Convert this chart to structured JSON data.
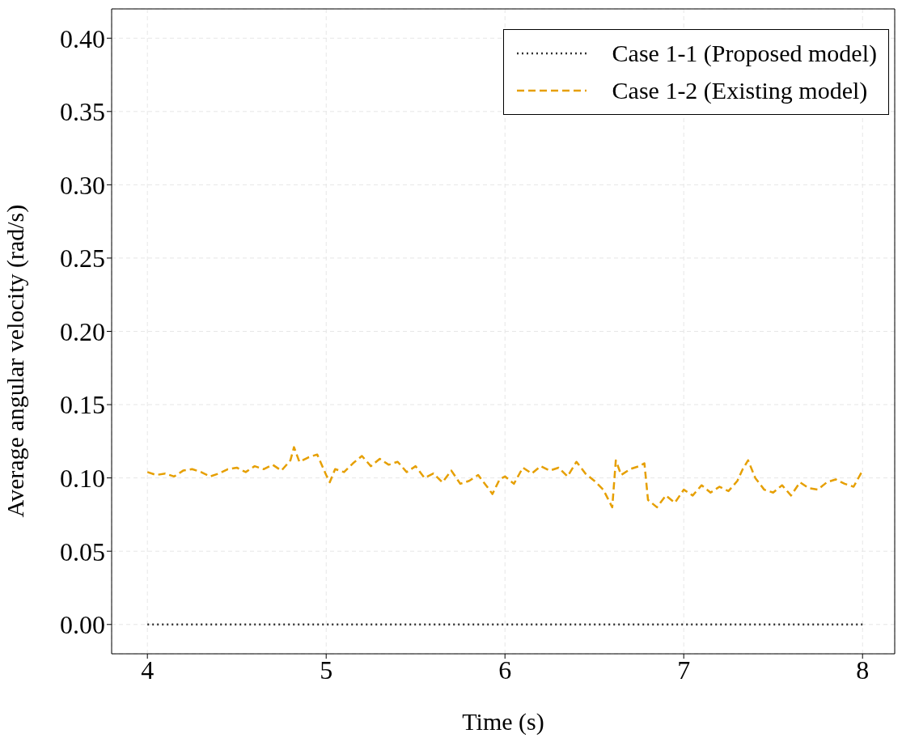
{
  "chart_data": {
    "type": "line",
    "xlabel": "Time (s)",
    "ylabel": "Average angular velocity (rad/s)",
    "xlim": [
      3.8,
      8.18
    ],
    "ylim": [
      -0.02,
      0.42
    ],
    "xticks": [
      4,
      5,
      6,
      7,
      8
    ],
    "yticks": [
      {
        "value": 0,
        "label": "0.00"
      },
      {
        "value": 0.05,
        "label": "0.05"
      },
      {
        "value": 0.1,
        "label": "0.10"
      },
      {
        "value": 0.15,
        "label": "0.15"
      },
      {
        "value": 0.2,
        "label": "0.20"
      },
      {
        "value": 0.25,
        "label": "0.25"
      },
      {
        "value": 0.3,
        "label": "0.30"
      },
      {
        "value": 0.35,
        "label": "0.35"
      },
      {
        "value": 0.4,
        "label": "0.40"
      }
    ],
    "grid": true,
    "legend": "top right",
    "series": [
      {
        "name": "Case 1-1 (Proposed model)",
        "color": "#333333",
        "line_style": "dotted",
        "x": [
          4,
          8
        ],
        "values": [
          0,
          0
        ]
      },
      {
        "name": "Case 1-2 (Existing model)",
        "color": "#e69f00",
        "line_style": "dashed",
        "x": [
          4,
          4.05,
          4.1,
          4.15,
          4.2,
          4.25,
          4.3,
          4.35,
          4.4,
          4.45,
          4.5,
          4.55,
          4.6,
          4.65,
          4.7,
          4.75,
          4.8,
          4.82,
          4.85,
          4.9,
          4.95,
          5.0,
          5.02,
          5.05,
          5.1,
          5.15,
          5.2,
          5.25,
          5.3,
          5.35,
          5.4,
          5.45,
          5.5,
          5.55,
          5.6,
          5.65,
          5.7,
          5.75,
          5.8,
          5.85,
          5.9,
          5.93,
          5.97,
          6.0,
          6.05,
          6.1,
          6.15,
          6.2,
          6.25,
          6.3,
          6.35,
          6.4,
          6.45,
          6.5,
          6.55,
          6.6,
          6.62,
          6.65,
          6.7,
          6.75,
          6.78,
          6.8,
          6.85,
          6.9,
          6.95,
          7.0,
          7.05,
          7.1,
          7.15,
          7.2,
          7.25,
          7.3,
          7.33,
          7.36,
          7.4,
          7.45,
          7.5,
          7.55,
          7.6,
          7.65,
          7.7,
          7.75,
          7.8,
          7.85,
          7.9,
          7.95,
          8.0
        ],
        "values": [
          0.104,
          0.102,
          0.103,
          0.101,
          0.105,
          0.106,
          0.104,
          0.101,
          0.103,
          0.106,
          0.107,
          0.104,
          0.108,
          0.106,
          0.109,
          0.105,
          0.112,
          0.121,
          0.111,
          0.114,
          0.116,
          0.102,
          0.097,
          0.106,
          0.104,
          0.11,
          0.115,
          0.108,
          0.113,
          0.109,
          0.111,
          0.104,
          0.108,
          0.1,
          0.103,
          0.097,
          0.105,
          0.096,
          0.098,
          0.102,
          0.094,
          0.089,
          0.099,
          0.101,
          0.096,
          0.107,
          0.103,
          0.108,
          0.105,
          0.107,
          0.101,
          0.111,
          0.103,
          0.098,
          0.092,
          0.08,
          0.112,
          0.102,
          0.106,
          0.108,
          0.11,
          0.085,
          0.08,
          0.088,
          0.083,
          0.092,
          0.088,
          0.095,
          0.09,
          0.094,
          0.091,
          0.098,
          0.106,
          0.112,
          0.1,
          0.092,
          0.09,
          0.095,
          0.088,
          0.097,
          0.093,
          0.092,
          0.097,
          0.099,
          0.096,
          0.094,
          0.105
        ]
      }
    ]
  }
}
